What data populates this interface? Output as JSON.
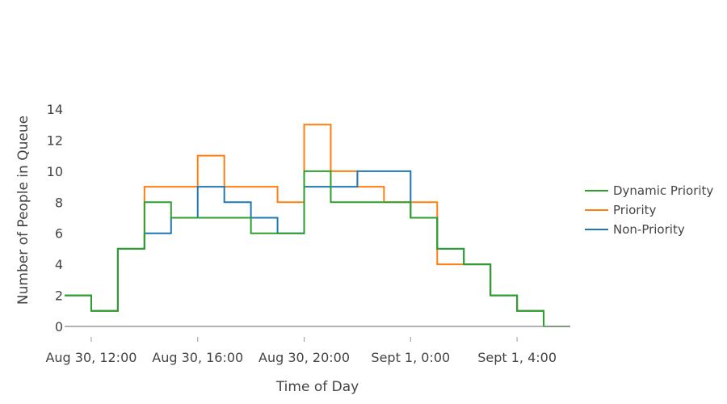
{
  "chart_data": {
    "type": "line",
    "step": true,
    "xlabel": "Time of Day",
    "ylabel": "Number of People in Queue",
    "ylim": [
      0,
      14
    ],
    "yticks": [
      0,
      2,
      4,
      6,
      8,
      10,
      12,
      14
    ],
    "x_ticks": [
      {
        "hour": 12,
        "label": "Aug 30, 12:00"
      },
      {
        "hour": 16,
        "label": "Aug 30, 16:00"
      },
      {
        "hour": 20,
        "label": "Aug 30, 20:00"
      },
      {
        "hour": 24,
        "label": "Sept 1, 0:00"
      },
      {
        "hour": 28,
        "label": "Sept 1, 4:00"
      }
    ],
    "x_unit": "hour",
    "xlim": [
      11,
      30
    ],
    "grid": false,
    "legend_position": "right",
    "series": [
      {
        "name": "Dynamic Priority",
        "color": "#2ca02c",
        "x": [
          11,
          12,
          13,
          14,
          15,
          16,
          17,
          18,
          19,
          20,
          21,
          22,
          23,
          24,
          25,
          26,
          27,
          28,
          29,
          30
        ],
        "values": [
          2,
          1,
          5,
          8,
          7,
          7,
          7,
          6,
          6,
          10,
          8,
          8,
          8,
          7,
          5,
          4,
          2,
          1,
          0,
          0
        ]
      },
      {
        "name": "Priority",
        "color": "#ff7f0e",
        "x": [
          11,
          12,
          13,
          14,
          15,
          16,
          17,
          18,
          19,
          20,
          21,
          22,
          23,
          24,
          25,
          26,
          27,
          28,
          29,
          30
        ],
        "values": [
          2,
          1,
          5,
          9,
          9,
          11,
          9,
          9,
          8,
          13,
          10,
          9,
          8,
          8,
          4,
          4,
          2,
          1,
          0,
          0
        ]
      },
      {
        "name": "Non-Priority",
        "color": "#1f77b4",
        "x": [
          11,
          12,
          13,
          14,
          15,
          16,
          17,
          18,
          19,
          20,
          21,
          22,
          23,
          24,
          25,
          26,
          27,
          28,
          29,
          30
        ],
        "values": [
          2,
          1,
          5,
          6,
          7,
          9,
          8,
          7,
          6,
          9,
          9,
          10,
          10,
          7,
          5,
          4,
          2,
          1,
          0,
          0
        ]
      }
    ],
    "legend_order": [
      0,
      1,
      2
    ],
    "draw_order": [
      1,
      2,
      0
    ],
    "axis_color": "#999999"
  }
}
